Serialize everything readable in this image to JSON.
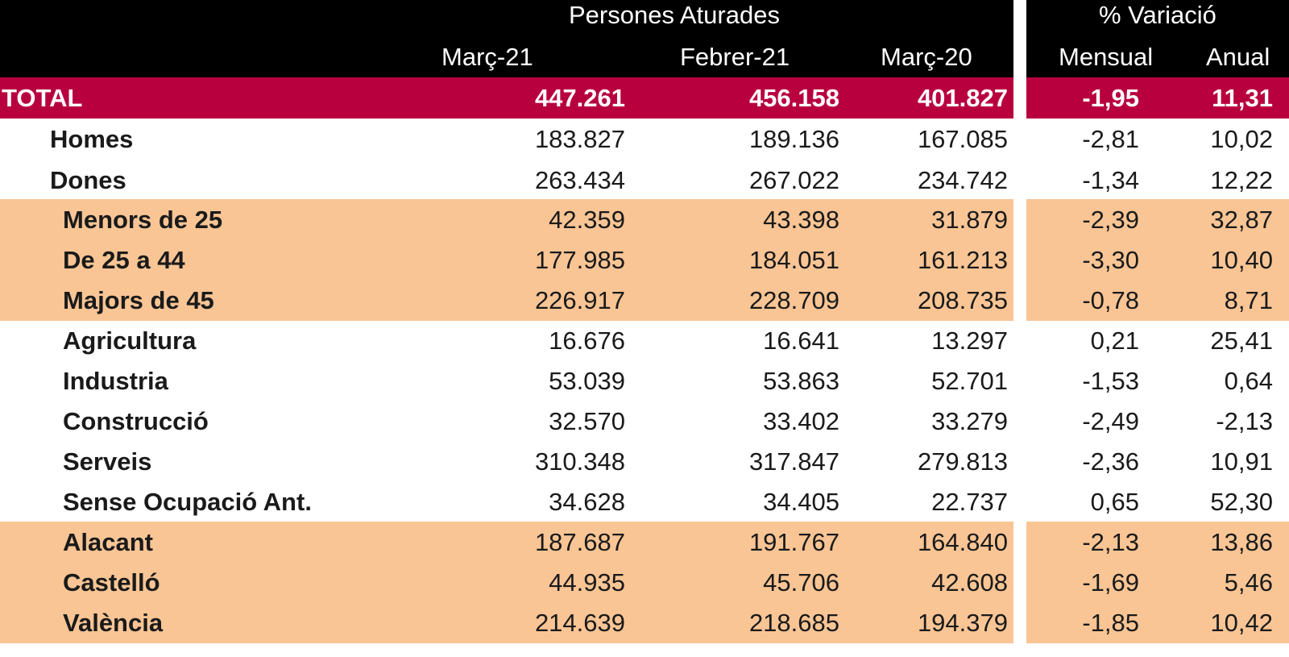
{
  "header": {
    "group_left": "Persones Aturades",
    "group_right": "% Variació",
    "columns": [
      "Març-21",
      "Febrer-21",
      "Març-20",
      "Mensual",
      "Anual"
    ]
  },
  "colors": {
    "header_bg": "#000000",
    "total_bg": "#b8003f",
    "highlight_bg": "#f9c595"
  },
  "rows": [
    {
      "label": "TOTAL",
      "values": [
        "447.261",
        "456.158",
        "401.827",
        "-1,95",
        "11,31"
      ]
    },
    {
      "label": "Homes",
      "values": [
        "183.827",
        "189.136",
        "167.085",
        "-2,81",
        "10,02"
      ]
    },
    {
      "label": "Dones",
      "values": [
        "263.434",
        "267.022",
        "234.742",
        "-1,34",
        "12,22"
      ]
    },
    {
      "label": "Menors de 25",
      "values": [
        "42.359",
        "43.398",
        "31.879",
        "-2,39",
        "32,87"
      ]
    },
    {
      "label": "De 25 a 44",
      "values": [
        "177.985",
        "184.051",
        "161.213",
        "-3,30",
        "10,40"
      ]
    },
    {
      "label": "Majors de 45",
      "values": [
        "226.917",
        "228.709",
        "208.735",
        "-0,78",
        "8,71"
      ]
    },
    {
      "label": "Agricultura",
      "values": [
        "16.676",
        "16.641",
        "13.297",
        "0,21",
        "25,41"
      ]
    },
    {
      "label": "Industria",
      "values": [
        "53.039",
        "53.863",
        "52.701",
        "-1,53",
        "0,64"
      ]
    },
    {
      "label": "Construcció",
      "values": [
        "32.570",
        "33.402",
        "33.279",
        "-2,49",
        "-2,13"
      ]
    },
    {
      "label": "Serveis",
      "values": [
        "310.348",
        "317.847",
        "279.813",
        "-2,36",
        "10,91"
      ]
    },
    {
      "label": "Sense Ocupació Ant.",
      "values": [
        "34.628",
        "34.405",
        "22.737",
        "0,65",
        "52,30"
      ]
    },
    {
      "label": "Alacant",
      "values": [
        "187.687",
        "191.767",
        "164.840",
        "-2,13",
        "13,86"
      ]
    },
    {
      "label": "Castelló",
      "values": [
        "44.935",
        "45.706",
        "42.608",
        "-1,69",
        "5,46"
      ]
    },
    {
      "label": "València",
      "values": [
        "214.639",
        "218.685",
        "194.379",
        "-1,85",
        "10,42"
      ]
    }
  ]
}
